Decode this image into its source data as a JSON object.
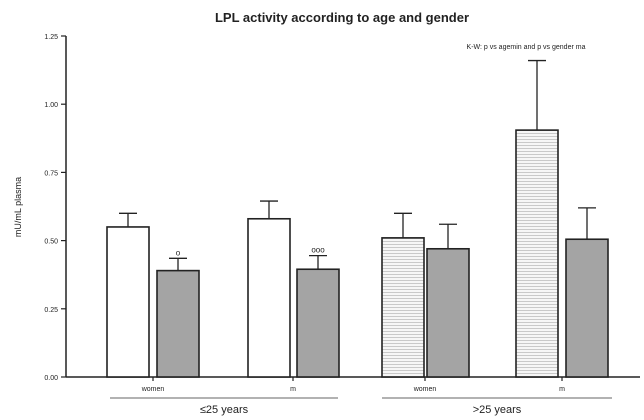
{
  "chart_data": {
    "type": "bar",
    "title": "LPL activity according to age and gender",
    "annotation": "K-W: p vs agemin and p vs gender ma",
    "ylabel": "mU/mL plasma",
    "ylim": [
      0,
      1.25
    ],
    "yticks": [
      "0.00",
      "0.25",
      "0.50",
      "0.75",
      "1.00",
      "1.25"
    ],
    "groups": [
      {
        "label": "≤25 years",
        "categories": [
          "women",
          "m"
        ]
      },
      {
        "label": ">25 years",
        "categories": [
          "women",
          "m"
        ]
      }
    ],
    "bars": [
      {
        "category": "women",
        "group": "≤25 years",
        "value": 0.55,
        "error": 0.05,
        "annotation": ""
      },
      {
        "category": "m",
        "group": "≤25 years",
        "value": 0.39,
        "error": 0.045,
        "annotation": "o"
      },
      {
        "category": "women",
        "group": "≤25 years",
        "value": 0.58,
        "error": 0.065,
        "annotation": ""
      },
      {
        "category": "m",
        "group": "≤25 years",
        "value": 0.395,
        "error": 0.05,
        "annotation": "ooo"
      },
      {
        "category": "women",
        "group": ">25 years",
        "value": 0.51,
        "error": 0.09,
        "annotation": ""
      },
      {
        "category": "m",
        "group": ">25 years",
        "value": 0.47,
        "error": 0.09,
        "annotation": ""
      },
      {
        "category": "women",
        "group": ">25 years",
        "value": 0.905,
        "error": 0.255,
        "annotation": ""
      },
      {
        "category": "m",
        "group": ">25 years",
        "value": 0.505,
        "error": 0.115,
        "annotation": ""
      }
    ],
    "fills": {
      "open": "#ffffff",
      "grey": "#a4a4a4",
      "hatched": "#efefef"
    },
    "grid": false
  }
}
